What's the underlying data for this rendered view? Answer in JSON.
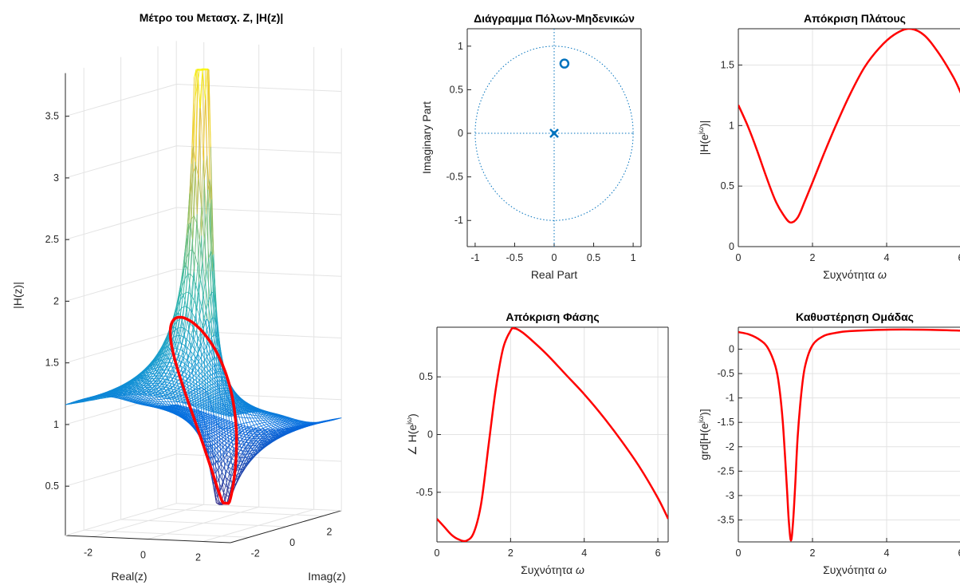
{
  "chart_data": [
    {
      "type": "surface3d",
      "title": "Μέτρο του Μετασχ. Ζ, |H(z)|",
      "xlabel": "Real(z)",
      "ylabel": "Imag(z)",
      "zlabel": "|H(z)|",
      "x_ticks": [
        "-2",
        "0",
        "2"
      ],
      "y_ticks": [
        "-2",
        "0",
        "2"
      ],
      "z_ticks": [
        "0.5",
        "1",
        "1.5",
        "2",
        "2.5",
        "3",
        "3.5"
      ],
      "zlim": [
        0.1,
        3.8
      ],
      "grid": true,
      "colormap": "parula",
      "line_color": "#ff0000"
    },
    {
      "type": "scatter",
      "title": "Διάγραμμα Πόλων-Μηδενικών",
      "xlabel": "Real Part",
      "ylabel": "Imaginary Part",
      "xlim": [
        -1.1,
        1.1
      ],
      "ylim": [
        -1.3,
        1.2
      ],
      "x_ticks": [
        "-1",
        "-0.5",
        "0",
        "0.5",
        "1"
      ],
      "y_ticks": [
        "-1",
        "-0.5",
        "0",
        "0.5",
        "1"
      ],
      "zeros": [
        [
          0.13,
          0.8
        ]
      ],
      "poles": [
        [
          0,
          0
        ]
      ],
      "unit_circle": true,
      "color": "#0072bd"
    },
    {
      "type": "line",
      "title": "Απόκριση Πλάτους",
      "xlabel": "Συχνότητα ω",
      "ylabel": "|H(e^jω)|",
      "xlim": [
        0,
        6.28
      ],
      "ylim": [
        0,
        1.8
      ],
      "x_ticks": [
        "0",
        "2",
        "4",
        "6"
      ],
      "y_ticks": [
        "0",
        "0.5",
        "1",
        "1.5"
      ],
      "grid": true,
      "series": [
        {
          "color": "#ff0000",
          "x": [
            0,
            0.25,
            0.5,
            0.75,
            1.0,
            1.2,
            1.4,
            1.6,
            1.8,
            2.0,
            2.3,
            2.6,
            3.0,
            3.4,
            3.8,
            4.2,
            4.6,
            5.0,
            5.4,
            5.8,
            6.0
          ],
          "y": [
            1.17,
            1.0,
            0.8,
            0.58,
            0.38,
            0.27,
            0.2,
            0.24,
            0.38,
            0.53,
            0.76,
            0.98,
            1.25,
            1.48,
            1.64,
            1.75,
            1.8,
            1.75,
            1.6,
            1.4,
            1.27
          ]
        }
      ]
    },
    {
      "type": "line",
      "title": "Απόκριση Φάσης",
      "xlabel": "Συχνότητα ω",
      "ylabel": "∠ H(e^jω)",
      "xlim": [
        0,
        6.28
      ],
      "ylim": [
        -0.93,
        0.93
      ],
      "x_ticks": [
        "0",
        "2",
        "4",
        "6"
      ],
      "y_ticks": [
        "-0.5",
        "0",
        "0.5"
      ],
      "grid": true,
      "series": [
        {
          "color": "#ff0000",
          "x": [
            0,
            0.2,
            0.4,
            0.6,
            0.8,
            1.0,
            1.2,
            1.4,
            1.6,
            1.8,
            2.0,
            2.1,
            2.3,
            2.6,
            3.0,
            3.5,
            4.0,
            4.5,
            5.0,
            5.5,
            6.0,
            6.28
          ],
          "y": [
            -0.73,
            -0.8,
            -0.87,
            -0.91,
            -0.92,
            -0.85,
            -0.6,
            -0.1,
            0.4,
            0.75,
            0.9,
            0.92,
            0.89,
            0.81,
            0.69,
            0.52,
            0.35,
            0.16,
            -0.05,
            -0.28,
            -0.55,
            -0.73
          ]
        }
      ]
    },
    {
      "type": "line",
      "title": "Καθυστέρηση Ομάδας",
      "xlabel": "Συχνότητα ω",
      "ylabel": "grd[H(e^jω)]",
      "xlim": [
        0,
        6.28
      ],
      "ylim": [
        -3.95,
        0.45
      ],
      "x_ticks": [
        "0",
        "2",
        "4",
        "6"
      ],
      "y_ticks": [
        "0",
        "-0.5",
        "-1",
        "-1.5",
        "-2",
        "-2.5",
        "-3",
        "-3.5"
      ],
      "grid": true,
      "series": [
        {
          "color": "#ff0000",
          "x": [
            0,
            0.3,
            0.6,
            0.8,
            1.0,
            1.1,
            1.2,
            1.3,
            1.36,
            1.42,
            1.48,
            1.54,
            1.6,
            1.7,
            1.8,
            2.0,
            2.3,
            2.6,
            3.0,
            4.0,
            5.0,
            6.0,
            6.28
          ],
          "y": [
            0.35,
            0.3,
            0.18,
            0.02,
            -0.35,
            -0.75,
            -1.5,
            -2.7,
            -3.5,
            -3.92,
            -3.5,
            -2.7,
            -1.8,
            -0.9,
            -0.35,
            0.08,
            0.27,
            0.33,
            0.37,
            0.4,
            0.4,
            0.38,
            0.37
          ]
        }
      ]
    }
  ]
}
